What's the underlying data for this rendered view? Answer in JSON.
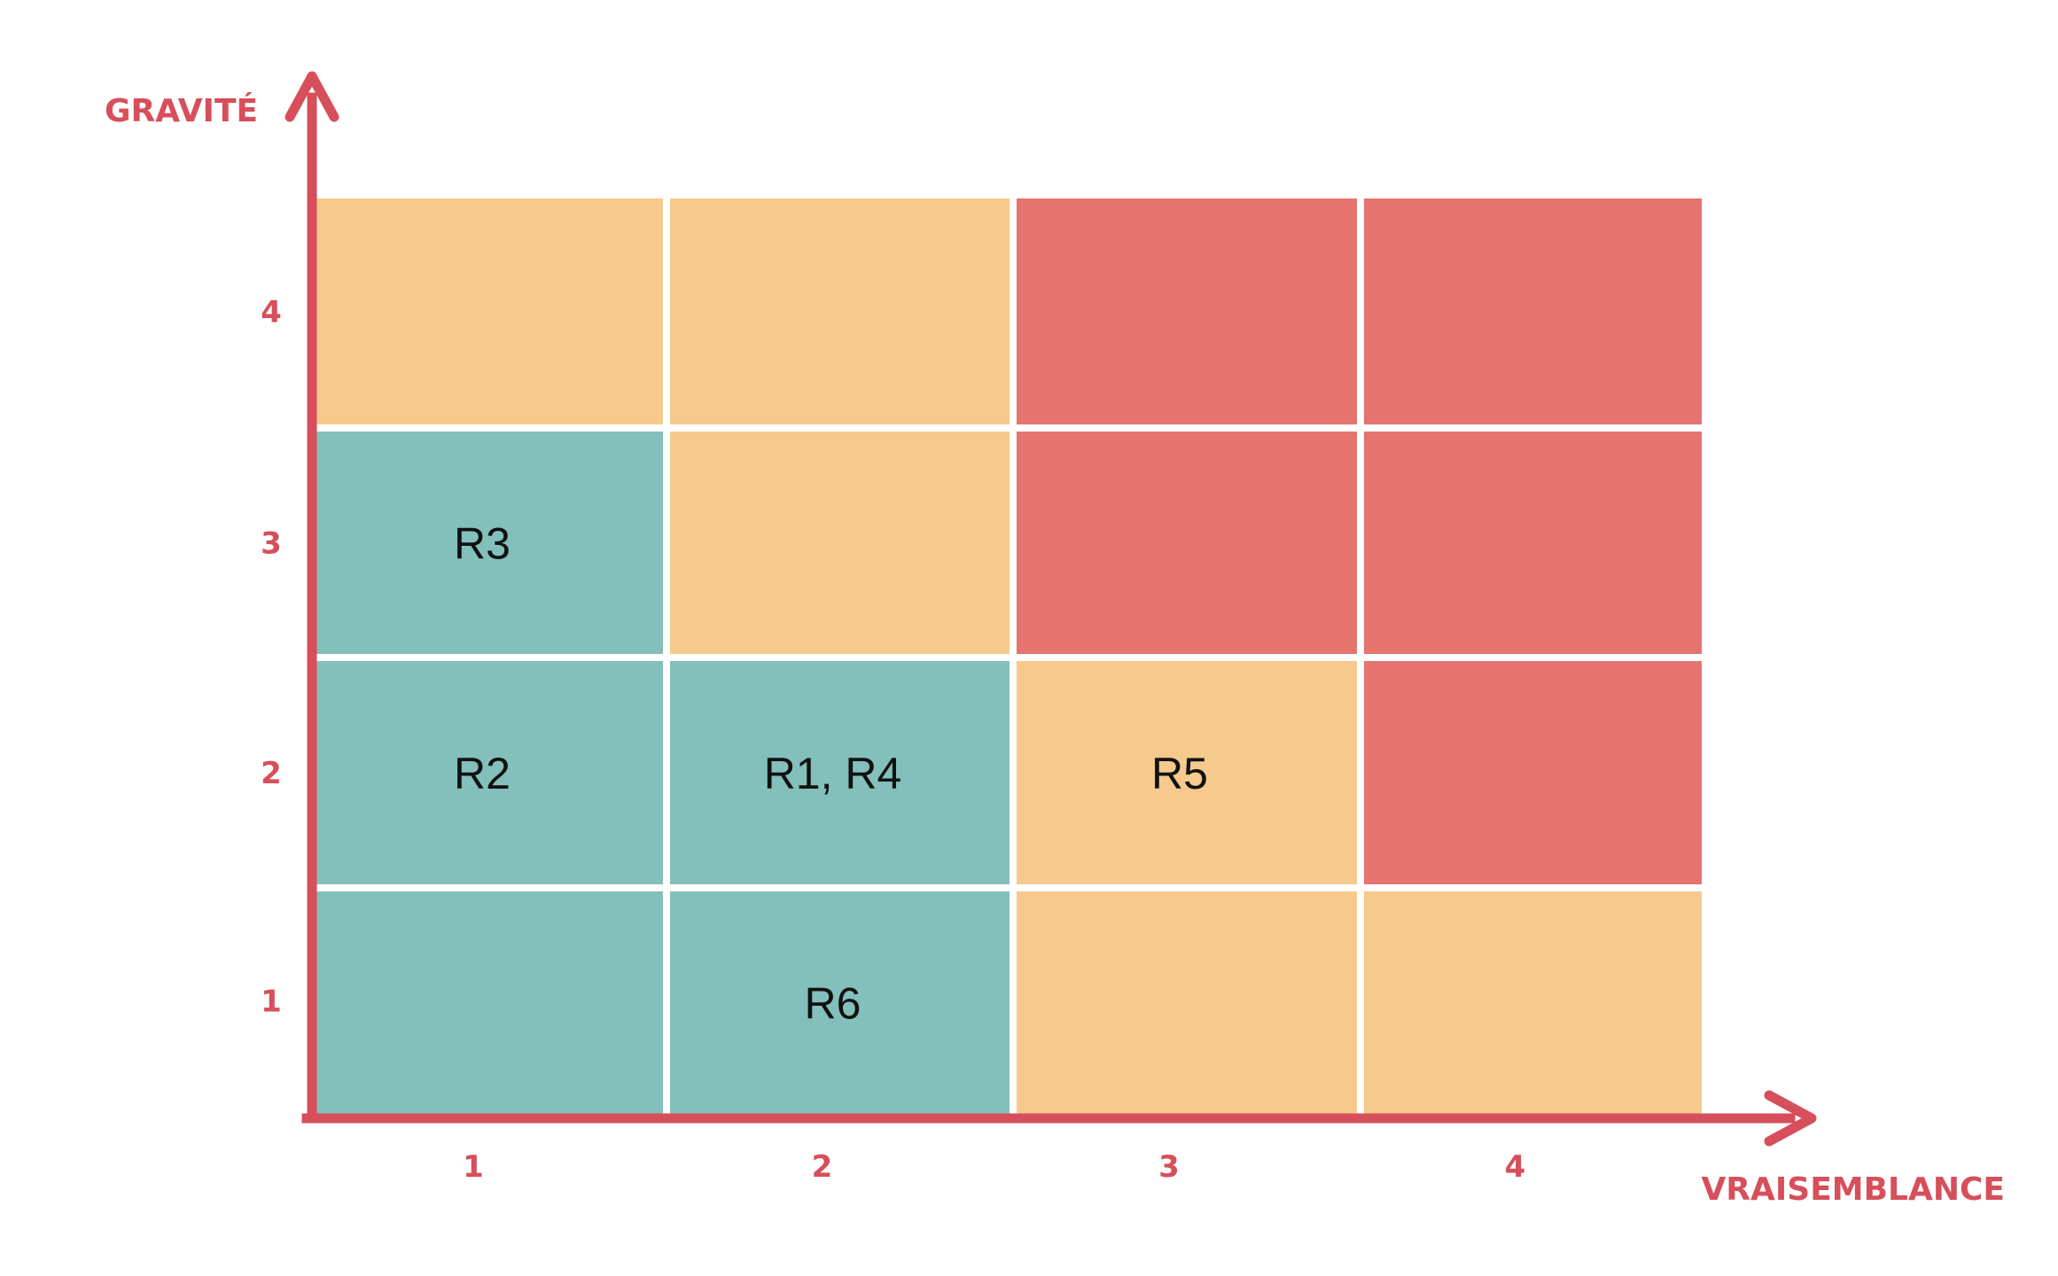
{
  "chart_data": {
    "type": "heatmap",
    "title": "",
    "xlabel": "VRAISEMBLANCE",
    "ylabel": "GRAVITÉ",
    "x_categories": [
      "1",
      "2",
      "3",
      "4"
    ],
    "y_categories": [
      "1",
      "2",
      "3",
      "4"
    ],
    "levels": {
      "low": "#83bfbb",
      "medium": "#f5ca8c",
      "high": "#e5736e"
    },
    "axis_color": "#d64f5a",
    "cells": [
      {
        "x": "1",
        "y": "4",
        "level": "medium",
        "label": ""
      },
      {
        "x": "2",
        "y": "4",
        "level": "medium",
        "label": ""
      },
      {
        "x": "3",
        "y": "4",
        "level": "high",
        "label": ""
      },
      {
        "x": "4",
        "y": "4",
        "level": "high",
        "label": ""
      },
      {
        "x": "1",
        "y": "3",
        "level": "low",
        "label": "R3"
      },
      {
        "x": "2",
        "y": "3",
        "level": "medium",
        "label": ""
      },
      {
        "x": "3",
        "y": "3",
        "level": "high",
        "label": ""
      },
      {
        "x": "4",
        "y": "3",
        "level": "high",
        "label": ""
      },
      {
        "x": "1",
        "y": "2",
        "level": "low",
        "label": "R2"
      },
      {
        "x": "2",
        "y": "2",
        "level": "low",
        "label": "R1, R4"
      },
      {
        "x": "3",
        "y": "2",
        "level": "medium",
        "label": "R5"
      },
      {
        "x": "4",
        "y": "2",
        "level": "high",
        "label": ""
      },
      {
        "x": "1",
        "y": "1",
        "level": "low",
        "label": ""
      },
      {
        "x": "2",
        "y": "1",
        "level": "low",
        "label": "R6"
      },
      {
        "x": "3",
        "y": "1",
        "level": "medium",
        "label": ""
      },
      {
        "x": "4",
        "y": "1",
        "level": "medium",
        "label": ""
      }
    ]
  }
}
